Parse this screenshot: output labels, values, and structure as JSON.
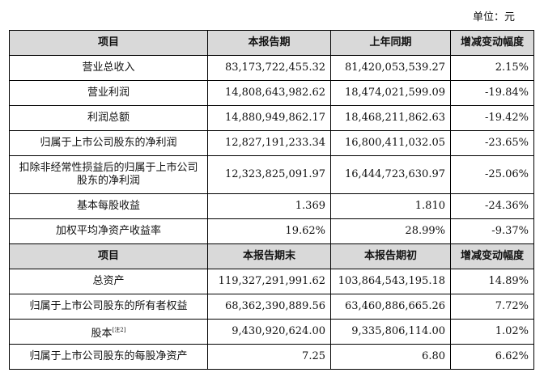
{
  "unit_label": "单位：元",
  "header1": [
    "项目",
    "本报告期",
    "上年同期",
    "增减变动幅度"
  ],
  "rows1": [
    {
      "item": "营业总收入",
      "current": "83,173,722,455.32",
      "previous": "81,420,053,539.27",
      "change": "2.15%"
    },
    {
      "item": "营业利润",
      "current": "14,808,643,982.62",
      "previous": "18,474,021,599.09",
      "change": "-19.84%"
    },
    {
      "item": "利润总额",
      "current": "14,880,949,862.17",
      "previous": "18,468,211,862.63",
      "change": "-19.42%"
    },
    {
      "item": "归属于上市公司股东的净利润",
      "current": "12,827,191,233.34",
      "previous": "16,800,411,032.05",
      "change": "-23.65%"
    },
    {
      "item": "扣除非经常性损益后的归属于上市公司股东的净利润",
      "current": "12,323,825,091.97",
      "previous": "16,444,723,630.97",
      "change": "-25.06%"
    },
    {
      "item": "基本每股收益",
      "current": "1.369",
      "previous": "1.810",
      "change": "-24.36%"
    },
    {
      "item": "加权平均净资产收益率",
      "current": "19.62%",
      "previous": "28.99%",
      "change": "-9.37%"
    }
  ],
  "header2": [
    "项目",
    "本报告期末",
    "本报告期初",
    "增减变动幅度"
  ],
  "rows2": [
    {
      "item": "总资产",
      "current": "119,327,291,991.62",
      "previous": "103,864,543,195.18",
      "change": "14.89%"
    },
    {
      "item": "归属于上市公司股东的所有者权益",
      "current": "68,362,390,889.56",
      "previous": "63,460,886,665.26",
      "change": "7.72%"
    },
    {
      "item": "股本",
      "note": "[注2]",
      "current": "9,430,920,624.00",
      "previous": "9,335,806,114.00",
      "change": "1.02%"
    },
    {
      "item": "归属于上市公司股东的每股净资产",
      "current": "7.25",
      "previous": "6.80",
      "change": "6.62%"
    }
  ]
}
